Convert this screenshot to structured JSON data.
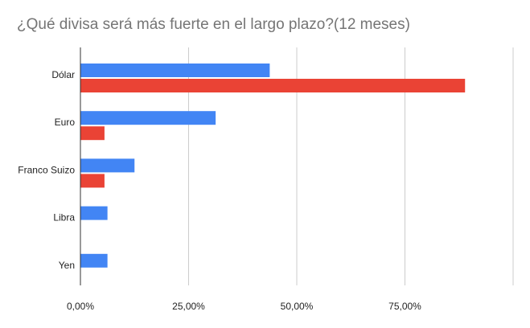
{
  "chart_data": {
    "type": "bar",
    "orientation": "horizontal",
    "title": "¿Qué divisa será más fuerte en el largo plazo?(12 meses)",
    "xlabel": "",
    "ylabel": "",
    "categories": [
      "Dólar",
      "Euro",
      "Franco Suizo",
      "Libra",
      "Yen"
    ],
    "series": [
      {
        "color": "#4285f4",
        "values": [
          43.75,
          31.25,
          12.5,
          6.25,
          6.25
        ]
      },
      {
        "color": "#ea4335",
        "values": [
          88.89,
          5.56,
          5.56,
          0,
          0
        ]
      }
    ],
    "xlim": [
      0,
      100
    ],
    "x_ticks": [
      0,
      25,
      50,
      75
    ],
    "x_tick_labels": [
      "0,00%",
      "25,00%",
      "50,00%",
      "75,00%"
    ],
    "grid": true,
    "legend": "none"
  }
}
